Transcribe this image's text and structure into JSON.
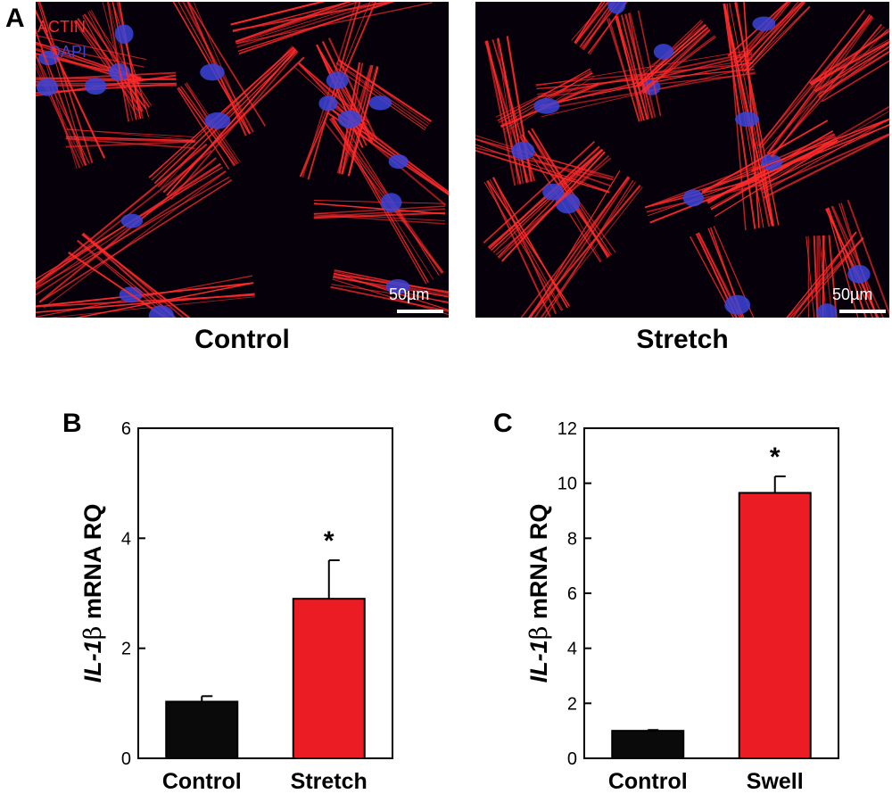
{
  "panel_labels": {
    "a": "A",
    "b": "B",
    "c": "C"
  },
  "micrographs": {
    "legend_actin": "ACTIN",
    "legend_dapi": "DAPI",
    "colors": {
      "actin": "#ff2a2a",
      "dapi": "#3b44d8",
      "background": "#05000a"
    },
    "left": {
      "caption": "Control",
      "scale_label": "50µm"
    },
    "right": {
      "caption": "Stretch",
      "scale_label": "50µm"
    }
  },
  "chart_data": [
    {
      "type": "bar",
      "panel": "B",
      "categories": [
        "Control",
        "Stretch"
      ],
      "values": [
        1.03,
        2.9
      ],
      "errors": [
        0.1,
        0.7
      ],
      "colors": [
        "#0a0a0a",
        "#ec1c24"
      ],
      "significance": [
        "",
        "*"
      ],
      "ylabel_prefix": "IL-1",
      "ylabel_symbol": "β",
      "ylabel_suffix": " mRNA RQ",
      "ylim": [
        0,
        6
      ],
      "yticks": [
        0,
        2,
        4,
        6
      ],
      "grid": false,
      "legend": "none"
    },
    {
      "type": "bar",
      "panel": "C",
      "categories": [
        "Control",
        "Swell"
      ],
      "values": [
        1.0,
        9.65
      ],
      "errors": [
        0.03,
        0.6
      ],
      "colors": [
        "#0a0a0a",
        "#ec1c24"
      ],
      "significance": [
        "",
        "*"
      ],
      "ylabel_prefix": "IL-1",
      "ylabel_symbol": "β",
      "ylabel_suffix": " mRNA RQ",
      "ylim": [
        0,
        12
      ],
      "yticks": [
        0,
        2,
        4,
        6,
        8,
        10,
        12
      ],
      "grid": false,
      "legend": "none"
    }
  ]
}
